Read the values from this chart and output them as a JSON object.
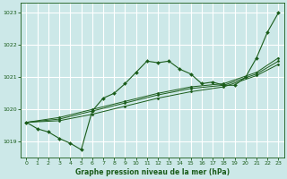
{
  "title": "Graphe pression niveau de la mer (hPa)",
  "bg_color": "#cce8e8",
  "grid_color": "#ffffff",
  "line_color": "#1a5c1a",
  "xlim": [
    -0.5,
    23.5
  ],
  "ylim": [
    1018.5,
    1023.3
  ],
  "yticks": [
    1019,
    1020,
    1021,
    1022,
    1023
  ],
  "xticks": [
    0,
    1,
    2,
    3,
    4,
    5,
    6,
    7,
    8,
    9,
    10,
    11,
    12,
    13,
    14,
    15,
    16,
    17,
    18,
    19,
    20,
    21,
    22,
    23
  ],
  "series": [
    {
      "x": [
        0,
        1,
        2,
        3,
        4,
        5,
        6,
        7,
        8,
        9,
        10,
        11,
        12,
        13,
        14,
        15,
        16,
        17,
        18,
        19,
        20,
        21,
        22,
        23
      ],
      "y": [
        1019.6,
        1019.4,
        1019.3,
        1019.1,
        1018.95,
        1018.75,
        1019.95,
        1020.35,
        1020.5,
        1020.8,
        1021.15,
        1021.5,
        1021.45,
        1021.5,
        1021.25,
        1021.1,
        1020.8,
        1020.85,
        1020.75,
        1020.75,
        1021.0,
        1021.6,
        1022.4,
        1023.0
      ]
    },
    {
      "x": [
        0,
        3,
        6,
        9,
        12,
        15,
        18,
        21,
        23
      ],
      "y": [
        1019.6,
        1019.65,
        1019.85,
        1020.1,
        1020.35,
        1020.55,
        1020.7,
        1021.05,
        1021.4
      ]
    },
    {
      "x": [
        0,
        3,
        6,
        9,
        12,
        15,
        18,
        21,
        23
      ],
      "y": [
        1019.6,
        1019.7,
        1019.95,
        1020.2,
        1020.45,
        1020.65,
        1020.75,
        1021.1,
        1021.5
      ]
    },
    {
      "x": [
        0,
        3,
        6,
        9,
        12,
        15,
        18,
        21,
        23
      ],
      "y": [
        1019.6,
        1019.75,
        1020.0,
        1020.25,
        1020.5,
        1020.7,
        1020.8,
        1021.15,
        1021.6
      ]
    }
  ]
}
